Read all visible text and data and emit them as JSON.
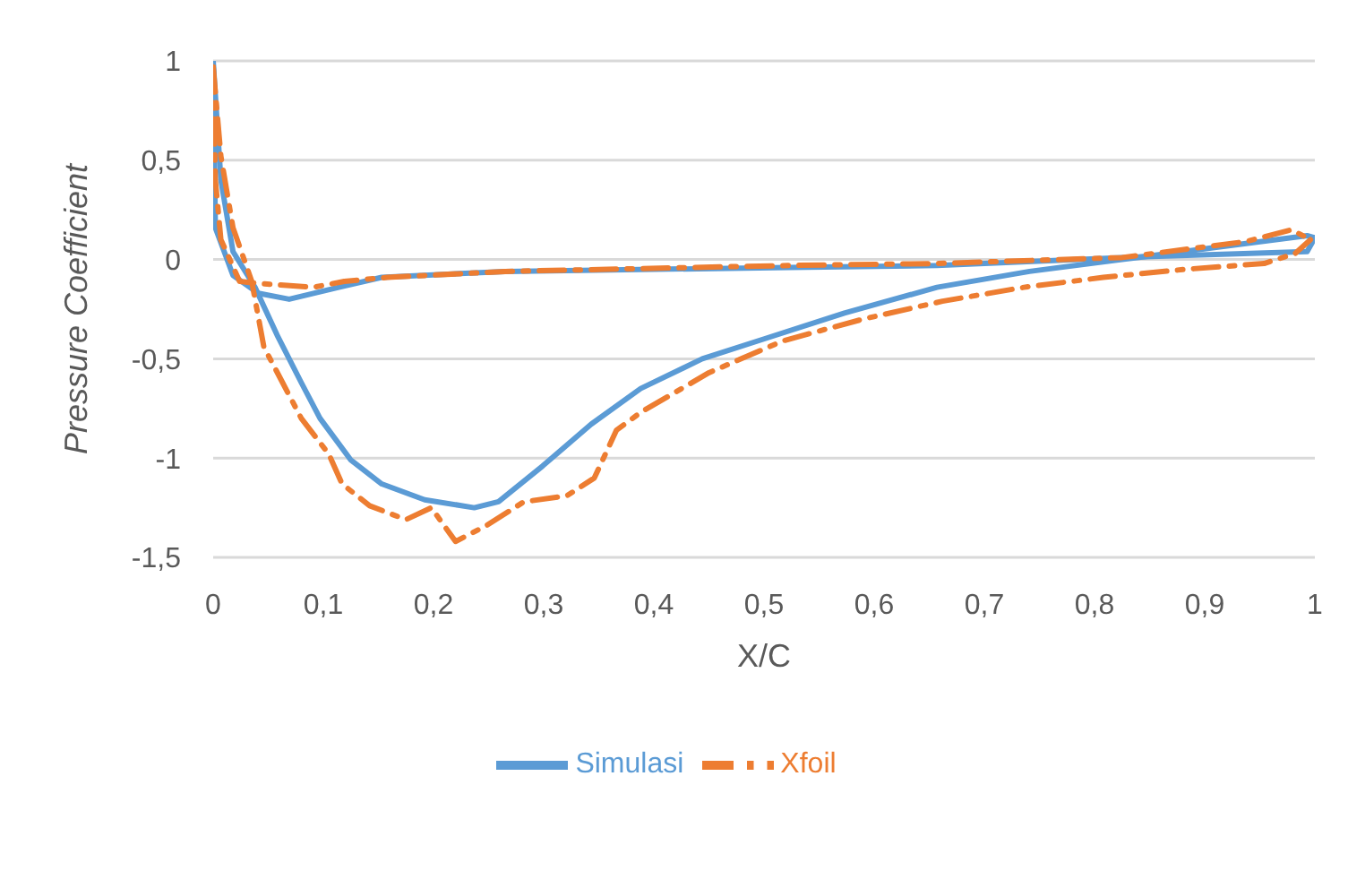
{
  "chart_data": {
    "type": "line",
    "xlabel": "X/C",
    "ylabel": "Pressure Coefficient",
    "xlim": [
      0,
      1
    ],
    "xticks": [
      0,
      {
        "value": 0.1,
        "label": "0,1"
      },
      {
        "value": 0.2,
        "label": "0,2"
      },
      {
        "value": 0.3,
        "label": "0,3"
      },
      {
        "value": 0.4,
        "label": "0,4"
      },
      {
        "value": 0.5,
        "label": "0,5"
      },
      {
        "value": 0.6,
        "label": "0,6"
      },
      {
        "value": 0.7,
        "label": "0,7"
      },
      {
        "value": 0.8,
        "label": "0,8"
      },
      {
        "value": 0.9,
        "label": "0,9"
      },
      1
    ],
    "ylim": [
      -1.5,
      1
    ],
    "yticks": [
      {
        "value": -1.5,
        "label": "-1,5"
      },
      -1,
      {
        "value": -0.5,
        "label": "-0,5"
      },
      0,
      {
        "value": 0.5,
        "label": "0,5"
      },
      1
    ],
    "grid": "y",
    "legend": "bottom",
    "marker": "none",
    "series": [
      {
        "name": "Simulasi",
        "color": "#5b9bd5",
        "line_style": "solid",
        "x": [
          0,
          0.007,
          0.018,
          0.038,
          0.058,
          0.08,
          0.097,
          0.125,
          0.153,
          0.192,
          0.237,
          0.259,
          0.299,
          0.343,
          0.388,
          0.444,
          0.5,
          0.573,
          0.657,
          0.741,
          0.825,
          0.909,
          0.993,
          1
        ],
        "values": [
          1,
          0.4,
          0.04,
          -0.14,
          -0.38,
          -0.62,
          -0.8,
          -1.01,
          -1.13,
          -1.21,
          -1.25,
          -1.22,
          -1.04,
          -0.83,
          -0.65,
          -0.5,
          -0.4,
          -0.27,
          -0.14,
          -0.06,
          0,
          0.06,
          0.12,
          0.11
        ]
      },
      {
        "color": "#5b9bd5",
        "line_style": "solid",
        "x": [
          0,
          0.002,
          0.018,
          0.041,
          0.069,
          0.114,
          0.153,
          0.265,
          0.523,
          0.657,
          0.825,
          0.993,
          1
        ],
        "values": [
          1,
          0.16,
          -0.08,
          -0.17,
          -0.2,
          -0.14,
          -0.09,
          -0.06,
          -0.04,
          -0.03,
          0.01,
          0.04,
          0.11
        ]
      },
      {
        "name": "Xfoil",
        "color": "#ed7d31",
        "line_style": "dashed",
        "x": [
          0,
          0.007,
          0.018,
          0.035,
          0.046,
          0.063,
          0.08,
          0.105,
          0.117,
          0.142,
          0.175,
          0.198,
          0.22,
          0.248,
          0.282,
          0.321,
          0.346,
          0.366,
          0.388,
          0.45,
          0.517,
          0.59,
          0.662,
          0.736,
          0.808,
          0.881,
          0.954,
          0.982,
          0.996
        ],
        "values": [
          0.97,
          0.52,
          0.16,
          -0.11,
          -0.44,
          -0.62,
          -0.8,
          -0.98,
          -1.13,
          -1.24,
          -1.31,
          -1.25,
          -1.42,
          -1.34,
          -1.22,
          -1.19,
          -1.1,
          -0.86,
          -0.77,
          -0.57,
          -0.41,
          -0.3,
          -0.21,
          -0.14,
          -0.09,
          -0.05,
          -0.02,
          0.03,
          0.1
        ]
      },
      {
        "color": "#ed7d31",
        "line_style": "dashed",
        "x": [
          0,
          0.002,
          0.007,
          0.024,
          0.04,
          0.091,
          0.119,
          0.158,
          0.265,
          0.523,
          0.657,
          0.825,
          0.937,
          0.979,
          0.996
        ],
        "values": [
          0.97,
          0.4,
          0.1,
          -0.11,
          -0.12,
          -0.14,
          -0.11,
          -0.09,
          -0.06,
          -0.03,
          -0.02,
          0.01,
          0.09,
          0.15,
          0.1
        ]
      }
    ]
  }
}
